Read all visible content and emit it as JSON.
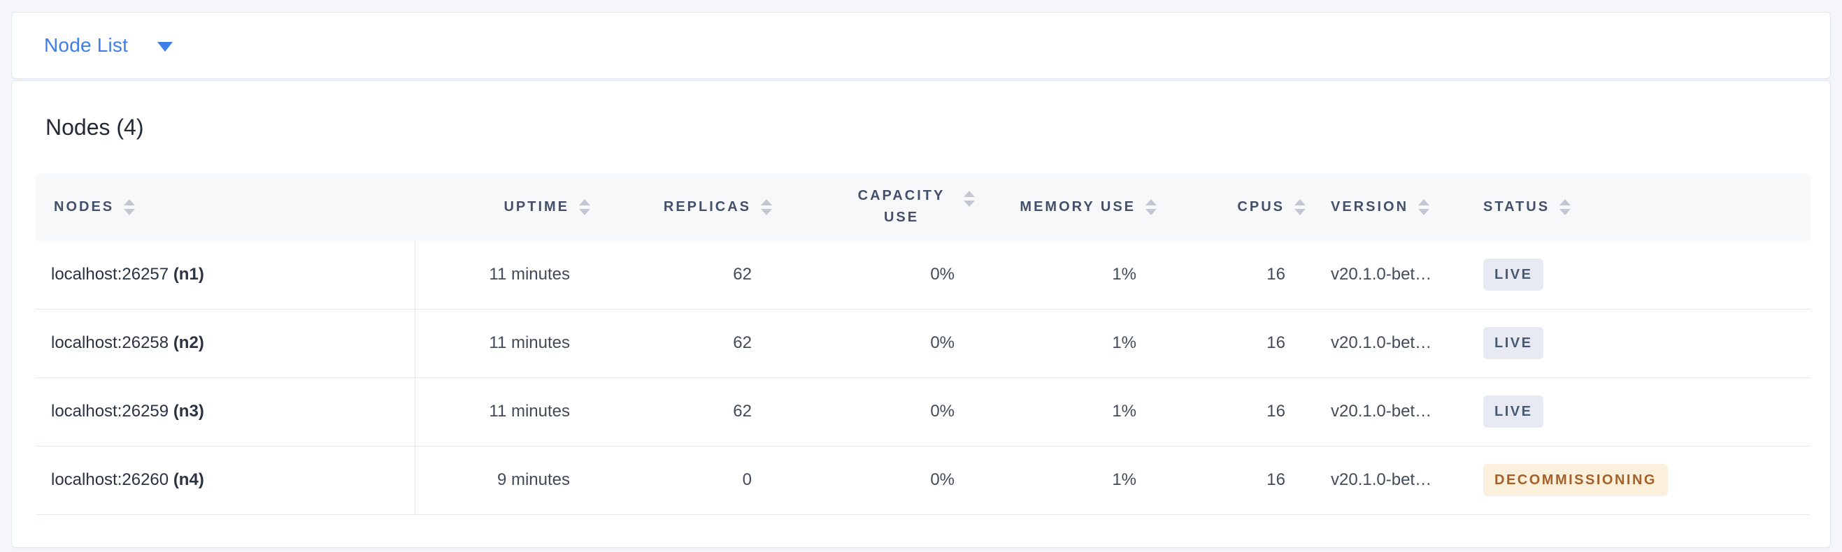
{
  "view_selector": {
    "label": "Node List",
    "icon": "caret-down-icon"
  },
  "card": {
    "title": "Nodes (4)"
  },
  "table": {
    "columns": [
      {
        "key": "nodes",
        "label": "NODES"
      },
      {
        "key": "uptime",
        "label": "UPTIME"
      },
      {
        "key": "replicas",
        "label": "REPLICAS"
      },
      {
        "key": "capacity_use",
        "label": "CAPACITY USE"
      },
      {
        "key": "memory_use",
        "label": "MEMORY USE"
      },
      {
        "key": "cpus",
        "label": "CPUS"
      },
      {
        "key": "version",
        "label": "VERSION"
      },
      {
        "key": "status",
        "label": "STATUS"
      }
    ],
    "rows": [
      {
        "address": "localhost:26257",
        "id": "(n1)",
        "uptime": "11 minutes",
        "replicas": "62",
        "capacity_use": "0%",
        "memory_use": "1%",
        "cpus": "16",
        "version": "v20.1.0-bet…",
        "status": "LIVE"
      },
      {
        "address": "localhost:26258",
        "id": "(n2)",
        "uptime": "11 minutes",
        "replicas": "62",
        "capacity_use": "0%",
        "memory_use": "1%",
        "cpus": "16",
        "version": "v20.1.0-bet…",
        "status": "LIVE"
      },
      {
        "address": "localhost:26259",
        "id": "(n3)",
        "uptime": "11 minutes",
        "replicas": "62",
        "capacity_use": "0%",
        "memory_use": "1%",
        "cpus": "16",
        "version": "v20.1.0-bet…",
        "status": "LIVE"
      },
      {
        "address": "localhost:26260",
        "id": "(n4)",
        "uptime": "9 minutes",
        "replicas": "0",
        "capacity_use": "0%",
        "memory_use": "1%",
        "cpus": "16",
        "version": "v20.1.0-bet…",
        "status": "DECOMMISSIONING"
      }
    ]
  },
  "colors": {
    "accent_blue": "#3f7ee8",
    "page_background": "#f4f6fa",
    "header_background": "#f7f8fa",
    "header_text": "#44506a",
    "border": "#e4e8ef",
    "badge_live_bg": "#e7eaf3",
    "badge_live_text": "#475872",
    "badge_decommissioning_bg": "#faf0dc",
    "badge_decommissioning_text": "#a5602a"
  }
}
